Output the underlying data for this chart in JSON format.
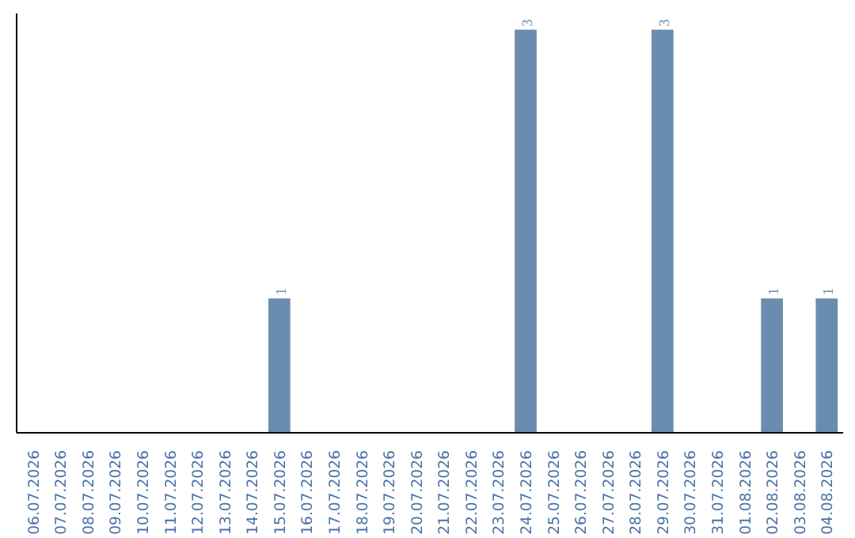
{
  "chart_data": {
    "type": "bar",
    "categories": [
      "06.07.2026",
      "07.07.2026",
      "08.07.2026",
      "09.07.2026",
      "10.07.2026",
      "11.07.2026",
      "12.07.2026",
      "13.07.2026",
      "14.07.2026",
      "15.07.2026",
      "16.07.2026",
      "17.07.2026",
      "18.07.2026",
      "19.07.2026",
      "20.07.2026",
      "21.07.2026",
      "22.07.2026",
      "23.07.2026",
      "24.07.2026",
      "25.07.2026",
      "26.07.2026",
      "27.07.2026",
      "28.07.2026",
      "29.07.2026",
      "30.07.2026",
      "31.07.2026",
      "01.08.2026",
      "02.08.2026",
      "03.08.2026",
      "04.08.2026"
    ],
    "values": [
      0,
      0,
      0,
      0,
      0,
      0,
      0,
      0,
      0,
      1,
      0,
      0,
      0,
      0,
      0,
      0,
      0,
      0,
      3,
      0,
      0,
      0,
      0,
      3,
      0,
      0,
      0,
      1,
      0,
      1
    ],
    "value_labels": [
      null,
      null,
      null,
      null,
      null,
      null,
      null,
      null,
      null,
      "1",
      null,
      null,
      null,
      null,
      null,
      null,
      null,
      null,
      "3",
      null,
      null,
      null,
      null,
      "3",
      null,
      null,
      null,
      "1",
      null,
      "1"
    ],
    "color": "#6a8caf",
    "grid": false
  }
}
